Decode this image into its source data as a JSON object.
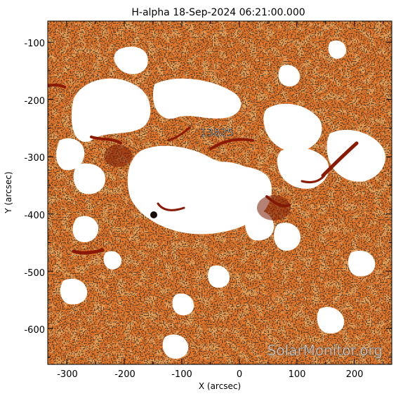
{
  "title": "H-alpha 18-Sep-2024 06:21:00.000",
  "x_axis": {
    "label": "X (arcsec)",
    "ticks": [
      "-300",
      "-200",
      "-100",
      "0",
      "100",
      "200"
    ],
    "tick_values": [
      -300,
      -200,
      -100,
      0,
      100,
      200
    ],
    "range": [
      -333,
      265
    ]
  },
  "y_axis": {
    "label": "Y (arcsec)",
    "ticks": [
      "-100",
      "-200",
      "-300",
      "-400",
      "-500",
      "-600"
    ],
    "tick_values": [
      -100,
      -200,
      -300,
      -400,
      -500,
      -600
    ],
    "range": [
      -663,
      -63
    ]
  },
  "region_label": "13825",
  "watermark": "SolarMonitor.org",
  "colors": {
    "background": "#ffffff",
    "chromosphere": "#e8772a",
    "filament": "#8a1a04",
    "dark_speckle": "#1a0d05",
    "plage": "#ffffff"
  }
}
